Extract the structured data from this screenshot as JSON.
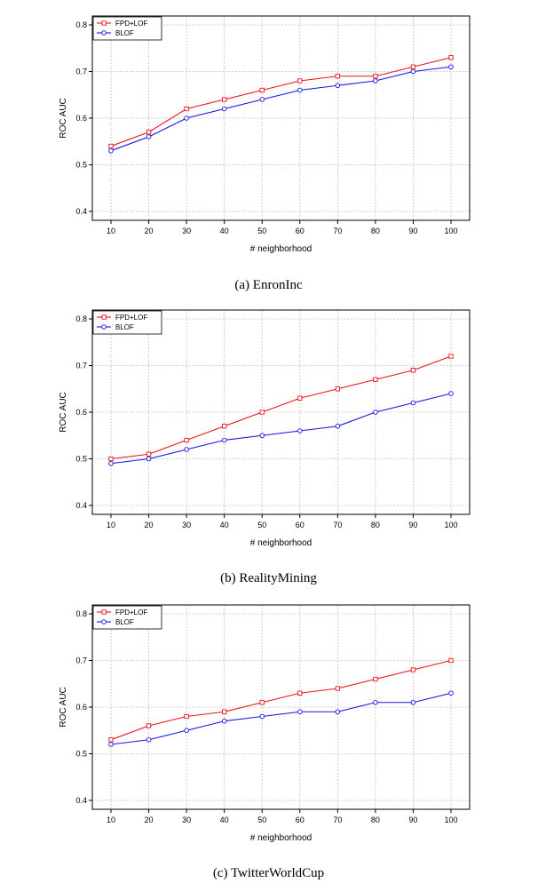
{
  "colors": {
    "fpd": "#e8141b",
    "blof": "#1414e6"
  },
  "chart_data": [
    {
      "type": "line",
      "caption": "(a)  EnronInc",
      "xlabel": "# neighborhood",
      "ylabel": "ROC AUC",
      "x": [
        10,
        20,
        30,
        40,
        50,
        60,
        70,
        80,
        90,
        100
      ],
      "ylim": [
        0.4,
        0.8
      ],
      "yticks": [
        0.4,
        0.5,
        0.6,
        0.7,
        0.8
      ],
      "grid": true,
      "legend_position": "top-left",
      "series": [
        {
          "name": "FPD+LOF",
          "color": "#e8141b",
          "marker": "square",
          "values": [
            0.54,
            0.57,
            0.62,
            0.64,
            0.66,
            0.68,
            0.69,
            0.69,
            0.71,
            0.73
          ]
        },
        {
          "name": "BLOF",
          "color": "#1414e6",
          "marker": "circle",
          "values": [
            0.53,
            0.56,
            0.6,
            0.62,
            0.64,
            0.66,
            0.67,
            0.68,
            0.7,
            0.71
          ]
        }
      ]
    },
    {
      "type": "line",
      "caption": "(b)  RealityMining",
      "xlabel": "# neighborhood",
      "ylabel": "ROC AUC",
      "x": [
        10,
        20,
        30,
        40,
        50,
        60,
        70,
        80,
        90,
        100
      ],
      "ylim": [
        0.4,
        0.8
      ],
      "yticks": [
        0.4,
        0.5,
        0.6,
        0.7,
        0.8
      ],
      "grid": true,
      "legend_position": "top-left",
      "series": [
        {
          "name": "FPD+LOF",
          "color": "#e8141b",
          "marker": "square",
          "values": [
            0.5,
            0.51,
            0.54,
            0.57,
            0.6,
            0.63,
            0.65,
            0.67,
            0.69,
            0.72
          ]
        },
        {
          "name": "BLOF",
          "color": "#1414e6",
          "marker": "circle",
          "values": [
            0.49,
            0.5,
            0.52,
            0.54,
            0.55,
            0.56,
            0.57,
            0.6,
            0.62,
            0.64
          ]
        }
      ]
    },
    {
      "type": "line",
      "caption": "(c)  TwitterWorldCup",
      "xlabel": "# neighborhood",
      "ylabel": "ROC AUC",
      "x": [
        10,
        20,
        30,
        40,
        50,
        60,
        70,
        80,
        90,
        100
      ],
      "ylim": [
        0.4,
        0.8
      ],
      "yticks": [
        0.4,
        0.5,
        0.6,
        0.7,
        0.8
      ],
      "grid": true,
      "legend_position": "top-left",
      "series": [
        {
          "name": "FPD+LOF",
          "color": "#e8141b",
          "marker": "square",
          "values": [
            0.53,
            0.56,
            0.58,
            0.59,
            0.61,
            0.63,
            0.64,
            0.66,
            0.68,
            0.7
          ]
        },
        {
          "name": "BLOF",
          "color": "#1414e6",
          "marker": "circle",
          "values": [
            0.52,
            0.53,
            0.55,
            0.57,
            0.58,
            0.59,
            0.59,
            0.61,
            0.61,
            0.63
          ]
        }
      ]
    }
  ]
}
